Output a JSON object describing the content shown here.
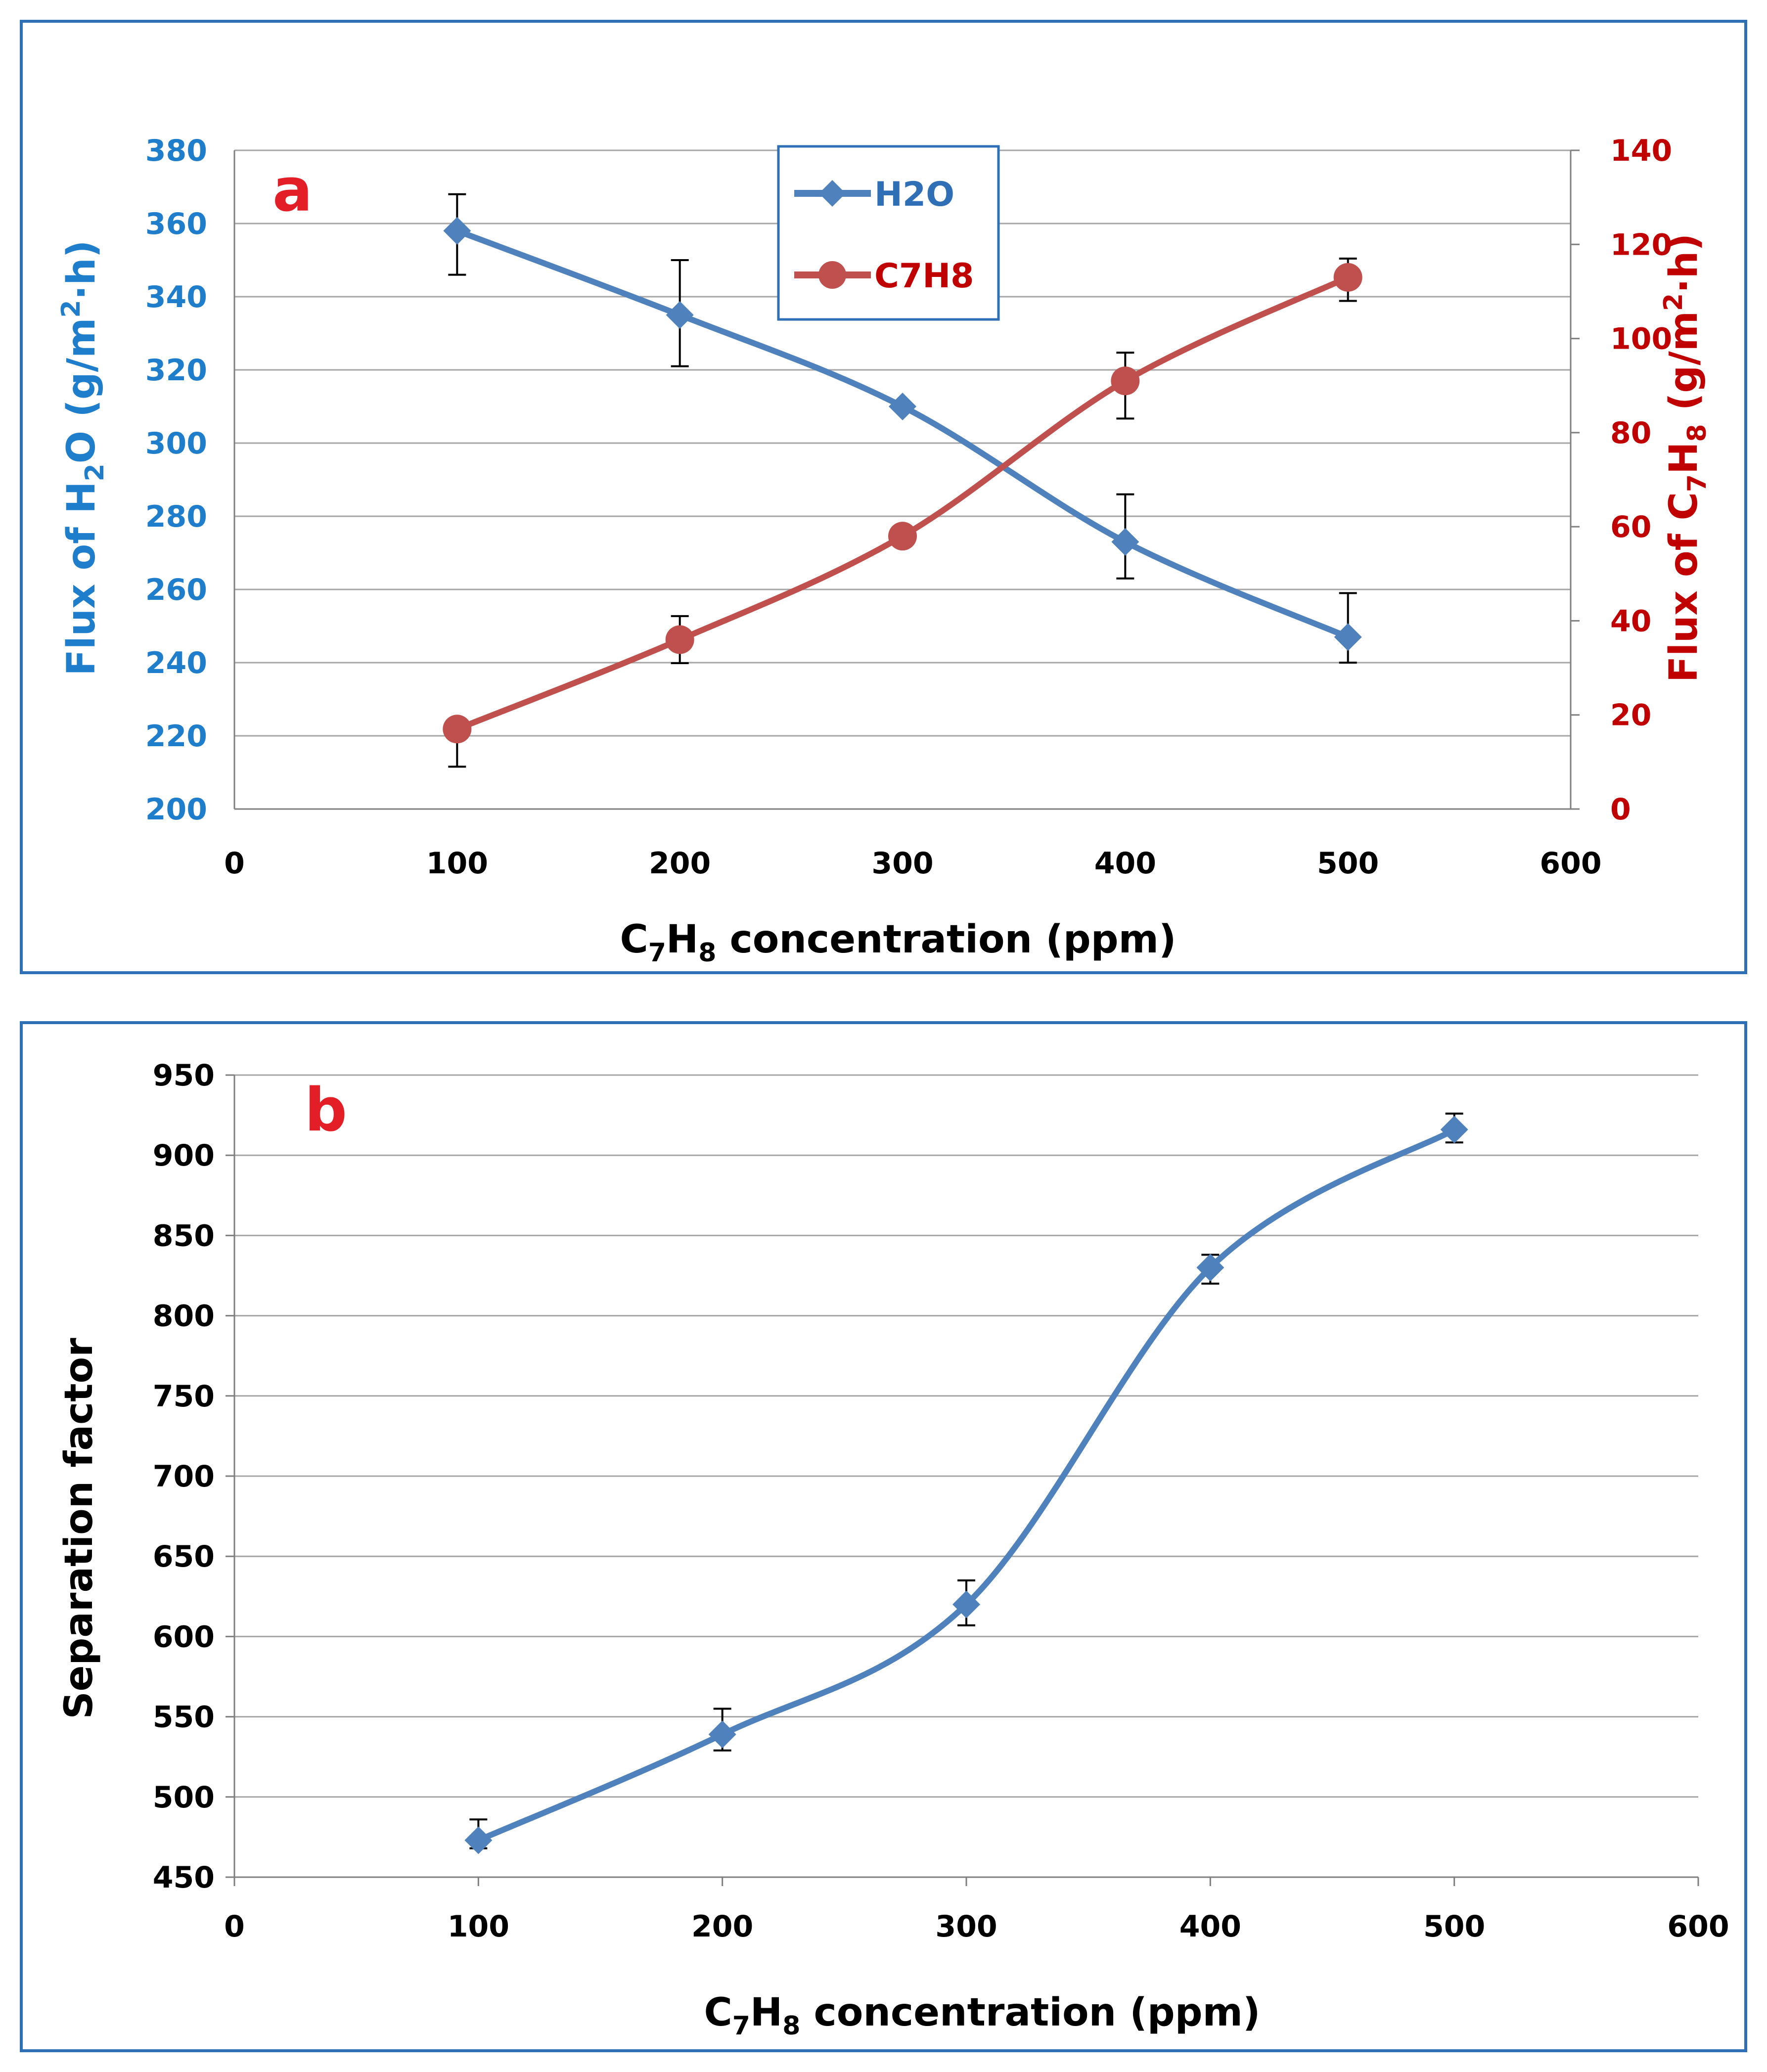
{
  "colors": {
    "h2o": "#4f81bd",
    "c7h8": "#c0504d",
    "left_axis_text": "#1f7ecb",
    "right_axis_text": "#c00000",
    "letter": "#e41e26",
    "grid": "#a6a6a6",
    "axis": "#7f7f7f",
    "text": "#000000",
    "frame": "#2f6fb5"
  },
  "chart_data": [
    {
      "id": "a",
      "type": "line",
      "panel_label": "a",
      "x": [
        100,
        200,
        300,
        400,
        500
      ],
      "xlim": [
        0,
        600
      ],
      "x_ticks": [
        0,
        100,
        200,
        300,
        400,
        500,
        600
      ],
      "xlabel": {
        "prefix": "C",
        "sub1": "7",
        "mid": "H",
        "sub2": "8",
        "suffix": " concentration (ppm)"
      },
      "y_left": {
        "ylim": [
          200,
          380
        ],
        "ticks": [
          200,
          220,
          240,
          260,
          280,
          300,
          320,
          340,
          360,
          380
        ],
        "label": {
          "pre": "Flux of H",
          "sub": "2",
          "mid": "O (g/m",
          "sup": "2",
          "post": "·h)"
        }
      },
      "y_right": {
        "ylim": [
          0,
          140
        ],
        "ticks": [
          0,
          20,
          40,
          60,
          80,
          100,
          120,
          140
        ],
        "label": {
          "pre": "Flux of C",
          "sub1": "7",
          "mid": "H",
          "sub2": "8",
          "mid2": " (g/m",
          "sup": "2",
          "post": "·h)"
        }
      },
      "series": [
        {
          "name": "H2O",
          "axis": "left",
          "marker": "diamond",
          "values": [
            358,
            335,
            310,
            273,
            247
          ],
          "err_low": [
            12,
            14,
            0,
            10,
            7
          ],
          "err_high": [
            10,
            15,
            0,
            13,
            12
          ]
        },
        {
          "name": "C7H8",
          "axis": "right",
          "marker": "circle",
          "values": [
            17,
            36,
            58,
            91,
            113
          ],
          "err_low": [
            8,
            5,
            0,
            8,
            5
          ],
          "err_high": [
            2,
            5,
            0,
            6,
            4
          ]
        }
      ],
      "legend": [
        "H2O",
        "C7H8"
      ],
      "grid": true
    },
    {
      "id": "b",
      "type": "line",
      "panel_label": "b",
      "x": [
        100,
        200,
        300,
        400,
        500
      ],
      "xlim": [
        0,
        600
      ],
      "x_ticks": [
        0,
        100,
        200,
        300,
        400,
        500,
        600
      ],
      "xlabel": {
        "prefix": "C",
        "sub1": "7",
        "mid": "H",
        "sub2": "8",
        "suffix": " concentration (ppm)"
      },
      "ylim": [
        450,
        950
      ],
      "y_ticks": [
        450,
        500,
        550,
        600,
        650,
        700,
        750,
        800,
        850,
        900,
        950
      ],
      "ylabel": "Separation factor",
      "series": [
        {
          "name": "Separation factor",
          "marker": "diamond",
          "values": [
            473,
            539,
            620,
            830,
            916
          ],
          "err_low": [
            5,
            10,
            13,
            10,
            8
          ],
          "err_high": [
            13,
            16,
            15,
            8,
            10
          ]
        }
      ],
      "grid": true
    }
  ]
}
